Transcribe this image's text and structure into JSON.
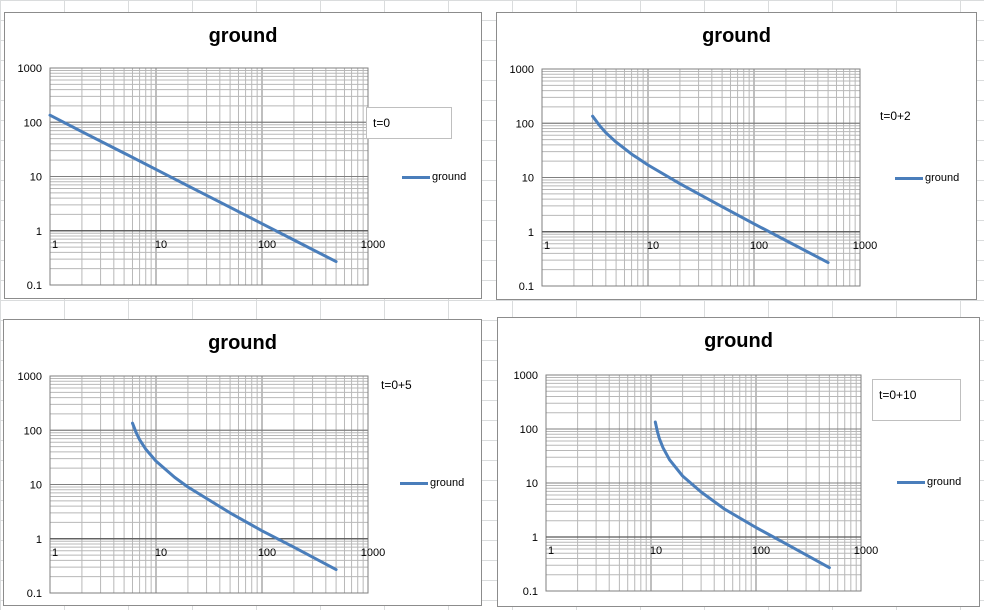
{
  "charts": [
    {
      "id": "c1",
      "title": "ground",
      "annotation": "t=0",
      "annotation_boxed": true,
      "legend_label": "ground"
    },
    {
      "id": "c2",
      "title": "ground",
      "annotation": "t=0+2",
      "annotation_boxed": false,
      "legend_label": "ground"
    },
    {
      "id": "c3",
      "title": "ground",
      "annotation": "t=0+5",
      "annotation_boxed": false,
      "legend_label": "ground"
    },
    {
      "id": "c4",
      "title": "ground",
      "annotation": "t=0+10",
      "annotation_boxed": true,
      "legend_label": "ground"
    }
  ],
  "chart_data": [
    {
      "type": "line",
      "title": "ground",
      "x_scale": "log",
      "y_scale": "log",
      "xlim": [
        1,
        1000
      ],
      "ylim": [
        0.1,
        1000
      ],
      "x_ticks": [
        "1",
        "10",
        "100",
        "1000"
      ],
      "y_ticks": [
        "1000",
        "100",
        "10",
        "1",
        "0.1"
      ],
      "grid": true,
      "legend": "right",
      "series": [
        {
          "name": "ground",
          "color": "#4a7ebb",
          "x": [
            1,
            2,
            5,
            10,
            20,
            50,
            100,
            200,
            500
          ],
          "y": [
            135,
            67,
            27,
            13.5,
            6.75,
            2.7,
            1.35,
            0.675,
            0.27
          ]
        }
      ]
    },
    {
      "type": "line",
      "title": "ground",
      "x_scale": "log",
      "y_scale": "log",
      "xlim": [
        1,
        1000
      ],
      "ylim": [
        0.1,
        1000
      ],
      "x_ticks": [
        "1",
        "10",
        "100",
        "1000"
      ],
      "y_ticks": [
        "1000",
        "100",
        "10",
        "1",
        "0.1"
      ],
      "grid": true,
      "legend": "right",
      "series": [
        {
          "name": "ground",
          "color": "#4a7ebb",
          "x": [
            3,
            3.5,
            4,
            5,
            7,
            10,
            20,
            50,
            100,
            200,
            500
          ],
          "y": [
            135,
            90,
            67,
            45,
            27,
            17,
            7.7,
            2.9,
            1.4,
            0.69,
            0.27
          ]
        }
      ]
    },
    {
      "type": "line",
      "title": "ground",
      "x_scale": "log",
      "y_scale": "log",
      "xlim": [
        1,
        1000
      ],
      "ylim": [
        0.1,
        1000
      ],
      "x_ticks": [
        "1",
        "10",
        "100",
        "1000"
      ],
      "y_ticks": [
        "1000",
        "100",
        "10",
        "1",
        "0.1"
      ],
      "grid": true,
      "legend": "right",
      "series": [
        {
          "name": "ground",
          "color": "#4a7ebb",
          "x": [
            6,
            6.5,
            7,
            8,
            10,
            15,
            20,
            50,
            100,
            200,
            500
          ],
          "y": [
            135,
            90,
            67,
            45,
            27,
            13.5,
            9,
            3,
            1.4,
            0.7,
            0.27
          ]
        }
      ]
    },
    {
      "type": "line",
      "title": "ground",
      "x_scale": "log",
      "y_scale": "log",
      "xlim": [
        1,
        1000
      ],
      "ylim": [
        0.1,
        1000
      ],
      "x_ticks": [
        "1",
        "10",
        "100",
        "1000"
      ],
      "y_ticks": [
        "1000",
        "100",
        "10",
        "1",
        "0.1"
      ],
      "grid": true,
      "legend": "right",
      "series": [
        {
          "name": "ground",
          "color": "#4a7ebb",
          "x": [
            11,
            11.5,
            12,
            13,
            15,
            20,
            30,
            50,
            100,
            200,
            500
          ],
          "y": [
            135,
            90,
            67,
            45,
            27,
            13.5,
            6.8,
            3.3,
            1.5,
            0.72,
            0.27
          ]
        }
      ]
    }
  ]
}
